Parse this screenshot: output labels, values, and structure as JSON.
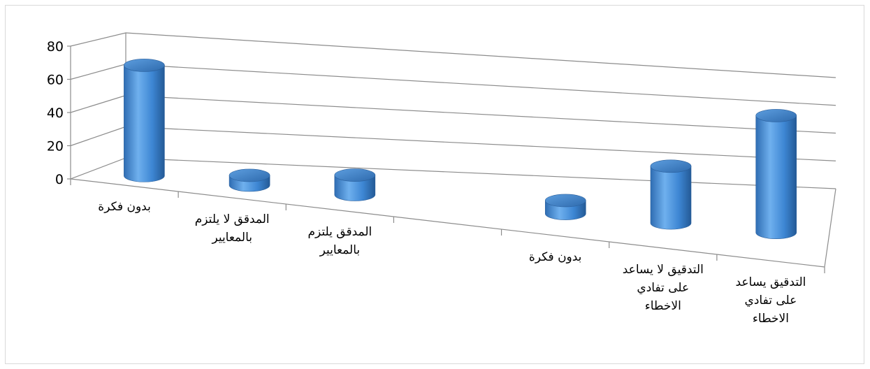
{
  "chart_data": {
    "type": "bar",
    "style": "3d-cylinder",
    "title": "",
    "xlabel": "",
    "ylabel": "",
    "ylim": [
      0,
      80
    ],
    "y_ticks": [
      "0",
      "20",
      "40",
      "60",
      "80"
    ],
    "grid": true,
    "legend": "none",
    "bar_color": "#4a90d9",
    "categories": [
      [
        "بدون فكرة"
      ],
      [
        "المدقق لا يلتزم",
        "بالمعايير"
      ],
      [
        "المدقق يلتزم",
        "بالمعايير"
      ],
      [
        ""
      ],
      [
        "بدون فكرة"
      ],
      [
        "التدقيق لا يساعد",
        "على تفادي",
        "الاخطاء"
      ],
      [
        "التدقيق يساعد",
        "على تفادي",
        "الاخطاء"
      ]
    ],
    "values": [
      68,
      6,
      12,
      null,
      8,
      35,
      72
    ]
  }
}
